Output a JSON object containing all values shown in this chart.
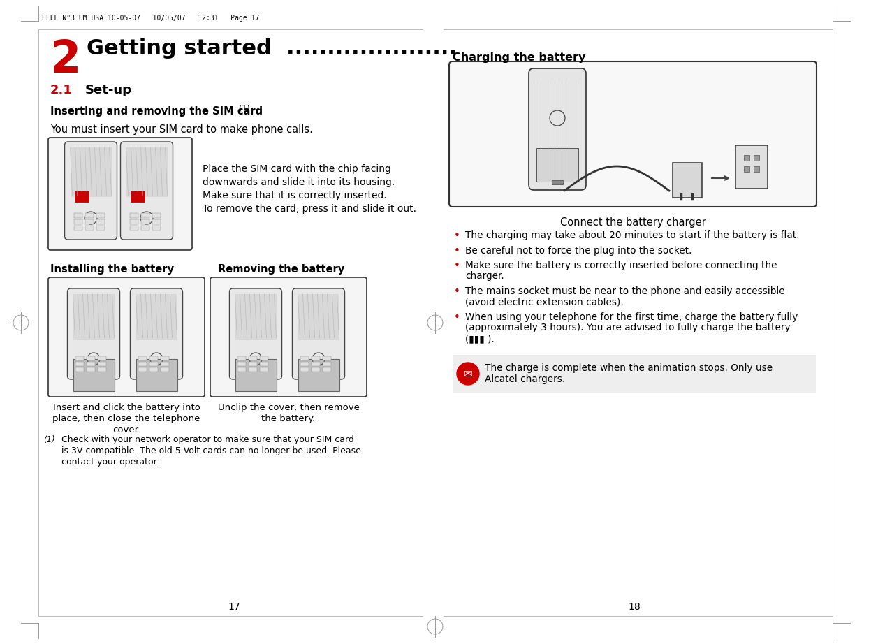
{
  "bg_color": "#ffffff",
  "header_text": "ELLE N°3_UM_USA_10-05-07   10/05/07   12:31   Page 17",
  "chapter_num": "2",
  "chapter_title": "Getting started  .....................",
  "section_label": "2.1",
  "section_title": "Set-up",
  "sub_title": "Inserting and removing the SIM card ",
  "sub_fn": "(1)",
  "intro": "You must insert your SIM card to make phone calls.",
  "sim_lines": [
    "Place the SIM card with the chip facing",
    "downwards and slide it into its housing.",
    "Make sure that it is correctly inserted.",
    "To remove the card, press it and slide it out."
  ],
  "install_hdr": "Installing the battery",
  "remove_hdr": "Removing the battery",
  "install_cap": [
    "Insert and click the battery into",
    "place, then close the telephone",
    "cover."
  ],
  "remove_cap": [
    "Unclip the cover, then remove",
    "the battery."
  ],
  "fn_num": "(1)",
  "fn_lines": [
    "Check with your network operator to make sure that your SIM card",
    "is 3V compatible. The old 5 Volt cards can no longer be used. Please",
    "contact your operator."
  ],
  "page_left": "17",
  "page_right": "18",
  "charge_title": "Charging the battery",
  "charge_cap": "Connect the battery charger",
  "bullets": [
    "The charging may take about 20 minutes to start if the battery is flat.",
    "Be careful not to force the plug into the socket.",
    [
      "Make sure the battery is correctly inserted before connecting the",
      "charger."
    ],
    [
      "The mains socket must be near to the phone and easily accessible",
      "(avoid electric extension cables)."
    ],
    [
      "When using your telephone for the first time, charge the battery fully",
      "(approximately 3 hours). You are advised to fully charge the battery",
      "(▮▮▮ )."
    ]
  ],
  "tip_line1": "The charge is complete when the animation stops. Only use",
  "tip_line2": "Alcatel chargers.",
  "red": "#cc0000",
  "black": "#000000",
  "gray": "#888888",
  "lightgray": "#f0f0f0",
  "bordergray": "#aaaaaa"
}
